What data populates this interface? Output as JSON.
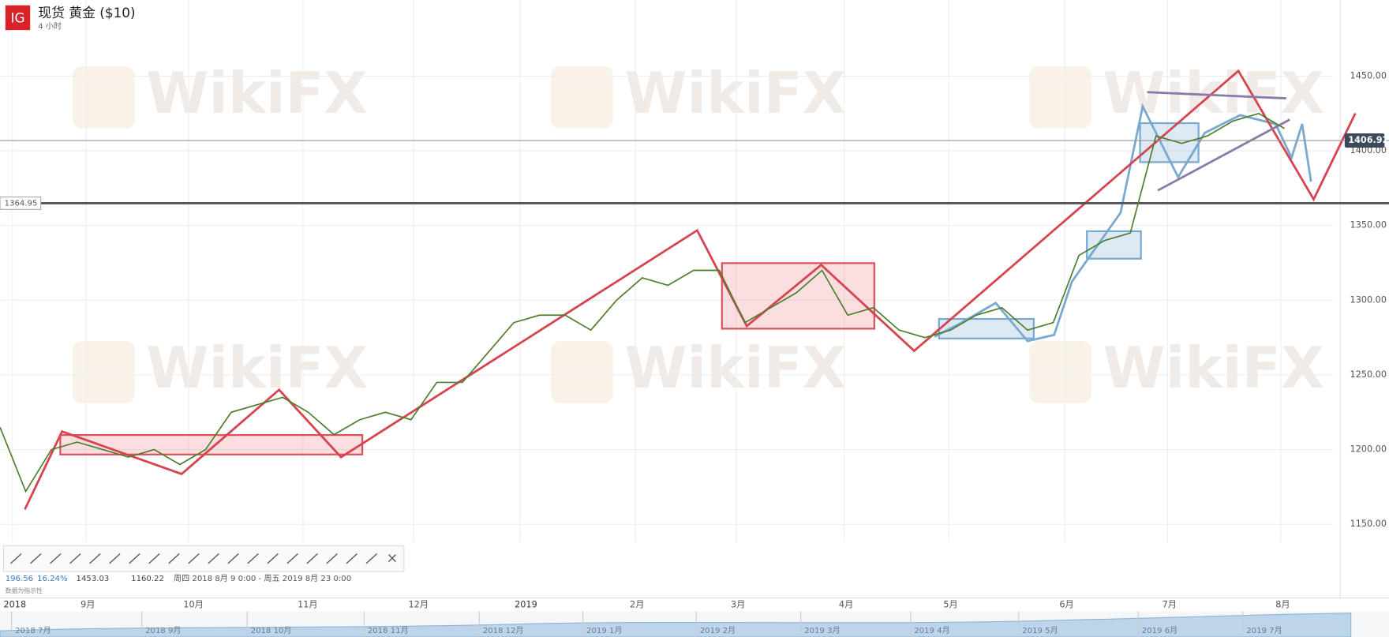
{
  "header": {
    "logo": "IG",
    "title": "现货 黄金 ($10)",
    "interval": "4 小时"
  },
  "watermark": "WikiFX",
  "chart_data": {
    "type": "line",
    "series": [
      {
        "color": "#4f7d2e",
        "values": [
          1215,
          1172,
          1200,
          1205,
          1200,
          1195,
          1200,
          1190,
          1200,
          1225,
          1230,
          1235,
          1225,
          1210,
          1220,
          1225,
          1220,
          1245,
          1245,
          1265,
          1285,
          1290,
          1290,
          1280,
          1300,
          1315,
          1310,
          1320,
          1320,
          1285,
          1295,
          1305,
          1320,
          1290,
          1295,
          1280,
          1275,
          1280,
          1290,
          1295,
          1280,
          1285,
          1330,
          1340,
          1345,
          1410,
          1405,
          1410,
          1420,
          1425,
          1415
        ]
      }
    ],
    "ylim": [
      1138,
      1501
    ],
    "yticks": [
      {
        "value": 1150,
        "label": "1150.00"
      },
      {
        "value": 1200,
        "label": "1200.00"
      },
      {
        "value": 1250,
        "label": "1250.00"
      },
      {
        "value": 1300,
        "label": "1300.00"
      },
      {
        "value": 1350,
        "label": "1350.00"
      },
      {
        "value": 1400,
        "label": "1400.00"
      },
      {
        "value": 1450,
        "label": "1450.00"
      }
    ],
    "grid": true,
    "last_price": 1406.92,
    "level_line": 1364.95,
    "x_axis_labels": [
      "2018",
      "9月",
      "10月",
      "11月",
      "12月",
      "2019",
      "2月",
      "3月",
      "4月",
      "5月",
      "6月",
      "7月",
      "8月"
    ]
  },
  "status": {
    "values": [
      "196.56",
      "16.24%",
      "1453.03",
      "1160.22"
    ],
    "range": "周四 2018 8月 9 0:00 - 周五 2019 8月 23 0:00",
    "note": "数据为指示性"
  },
  "navigator": {
    "labels": [
      "2018 7月",
      "2018 9月",
      "2018 10月",
      "2018 11月",
      "2018 12月",
      "2019 1月",
      "2019 2月",
      "2019 3月",
      "2019 4月",
      "2019 5月",
      "2019 6月",
      "2019 7月"
    ]
  }
}
